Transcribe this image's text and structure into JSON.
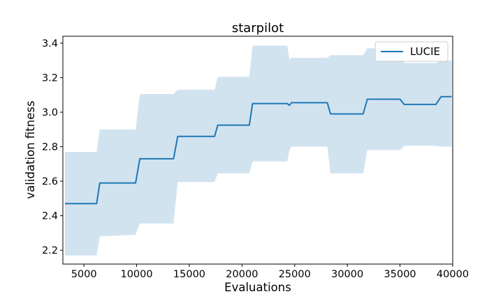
{
  "chart_data": {
    "type": "line",
    "title": "starpilot",
    "xlabel": "Evaluations",
    "ylabel": "validation fitness",
    "xlim": [
      3000,
      40000
    ],
    "ylim": [
      2.12,
      3.44
    ],
    "x_ticks": [
      5000,
      10000,
      15000,
      20000,
      25000,
      30000,
      35000,
      40000
    ],
    "y_ticks": [
      2.2,
      2.4,
      2.6,
      2.8,
      3.0,
      3.2,
      3.4
    ],
    "legend": {
      "position": "top-right",
      "entries": [
        "LUCIE"
      ]
    },
    "grid": false,
    "series": [
      {
        "name": "LUCIE",
        "color": "#1f77b4",
        "band_color": "#d2e3f0",
        "x": [
          3200,
          6200,
          6500,
          9900,
          10300,
          13500,
          13900,
          17400,
          17700,
          20700,
          21000,
          24300,
          24500,
          24700,
          28100,
          28400,
          31500,
          31900,
          35000,
          35400,
          38400,
          38900,
          39900
        ],
        "mean": [
          2.47,
          2.47,
          2.59,
          2.59,
          2.73,
          2.73,
          2.86,
          2.86,
          2.925,
          2.925,
          3.05,
          3.05,
          3.04,
          3.055,
          3.055,
          2.99,
          2.99,
          3.075,
          3.075,
          3.045,
          3.045,
          3.09,
          3.09
        ],
        "upper": [
          2.77,
          2.77,
          2.9,
          2.9,
          3.105,
          3.105,
          3.13,
          3.13,
          3.205,
          3.205,
          3.385,
          3.385,
          3.305,
          3.315,
          3.315,
          3.33,
          3.33,
          3.37,
          3.37,
          3.285,
          3.285,
          3.3,
          3.3
        ],
        "lower": [
          2.17,
          2.17,
          2.28,
          2.29,
          2.355,
          2.355,
          2.595,
          2.595,
          2.645,
          2.645,
          2.715,
          2.715,
          2.78,
          2.8,
          2.8,
          2.645,
          2.645,
          2.78,
          2.78,
          2.805,
          2.805,
          2.8,
          2.8
        ]
      }
    ]
  }
}
